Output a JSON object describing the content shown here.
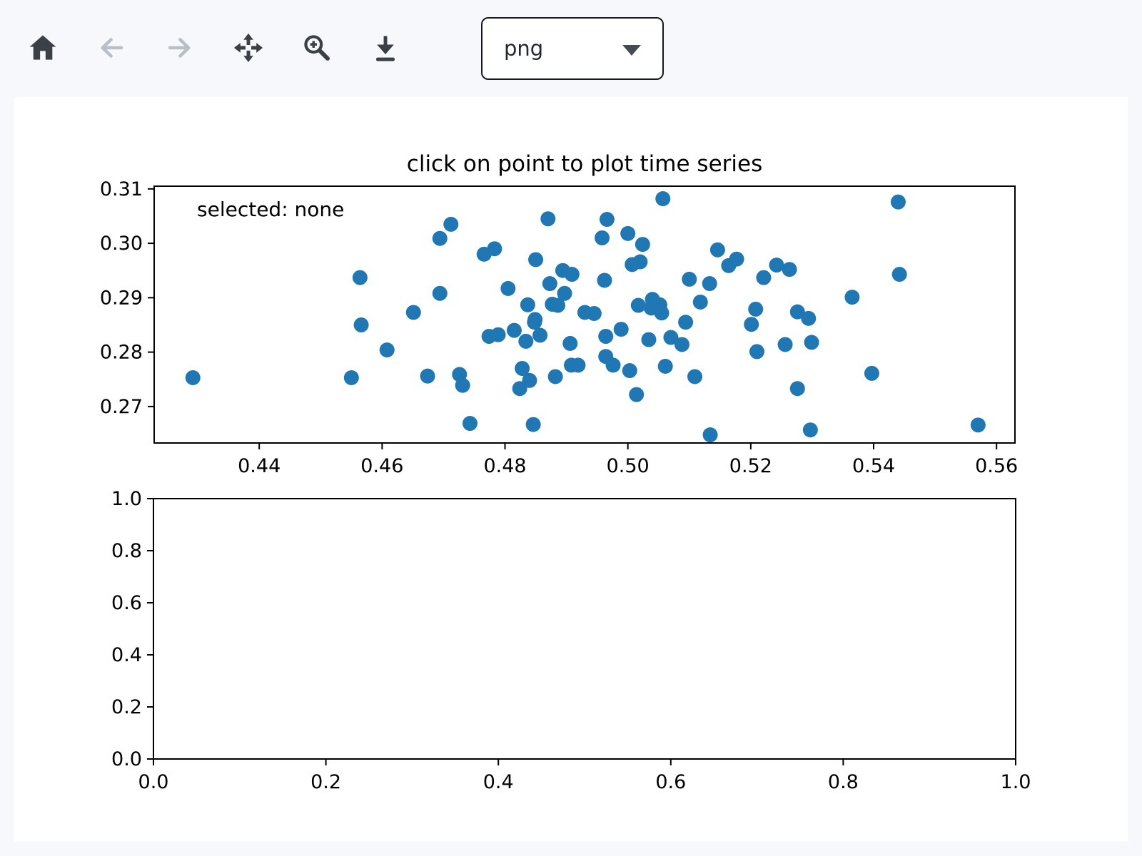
{
  "page": {
    "background": "#f6f8fc"
  },
  "toolbar": {
    "buttons": [
      {
        "label": "Home",
        "icon": "home-icon",
        "enabled": true
      },
      {
        "label": "Back",
        "icon": "arrow-left-icon",
        "enabled": false
      },
      {
        "label": "Forward",
        "icon": "arrow-right-icon",
        "enabled": false
      },
      {
        "label": "Pan",
        "icon": "move-icon",
        "enabled": true
      },
      {
        "label": "Zoom to rectangle",
        "icon": "zoom-in-icon",
        "enabled": true
      },
      {
        "label": "Download",
        "icon": "download-icon",
        "enabled": true
      }
    ],
    "format_select": {
      "value": "png",
      "icon": "caret-down-icon"
    }
  },
  "colors": {
    "marker": "#1f77b4",
    "axis": "#000000",
    "icon_enabled": "#3b4046",
    "icon_disabled": "#b9bfc9"
  },
  "chart_data": [
    {
      "type": "scatter",
      "name": "scatter-axes",
      "title": "click on point to plot time series",
      "annotation": "selected: none",
      "xlim": [
        0.4229,
        0.563
      ],
      "ylim": [
        0.2633,
        0.3105
      ],
      "xticks": [
        0.44,
        0.46,
        0.48,
        0.5,
        0.52,
        0.54,
        0.56
      ],
      "xtick_labels": [
        "0.44",
        "0.46",
        "0.48",
        "0.50",
        "0.52",
        "0.54",
        "0.56"
      ],
      "yticks": [
        0.27,
        0.28,
        0.29,
        0.3,
        0.31
      ],
      "ytick_labels": [
        "0.27",
        "0.28",
        "0.29",
        "0.30",
        "0.31"
      ],
      "grid": false,
      "legend": null,
      "marker": {
        "color": "#1f77b4",
        "radius_px": 10.5
      },
      "clickable": true,
      "points": [
        [
          0.4292,
          0.2753
        ],
        [
          0.455,
          0.2753
        ],
        [
          0.4564,
          0.2937
        ],
        [
          0.4566,
          0.285
        ],
        [
          0.4608,
          0.2804
        ],
        [
          0.4651,
          0.2873
        ],
        [
          0.4674,
          0.2756
        ],
        [
          0.4694,
          0.3009
        ],
        [
          0.4694,
          0.2908
        ],
        [
          0.4712,
          0.3035
        ],
        [
          0.4726,
          0.2759
        ],
        [
          0.4731,
          0.2739
        ],
        [
          0.4743,
          0.2669
        ],
        [
          0.4766,
          0.298
        ],
        [
          0.4774,
          0.2829
        ],
        [
          0.4783,
          0.299
        ],
        [
          0.4789,
          0.2832
        ],
        [
          0.4805,
          0.2917
        ],
        [
          0.4815,
          0.284
        ],
        [
          0.4824,
          0.2733
        ],
        [
          0.4828,
          0.277
        ],
        [
          0.4834,
          0.282
        ],
        [
          0.4837,
          0.2887
        ],
        [
          0.484,
          0.2748
        ],
        [
          0.4846,
          0.2667
        ],
        [
          0.4848,
          0.2855
        ],
        [
          0.4849,
          0.286
        ],
        [
          0.485,
          0.297
        ],
        [
          0.4857,
          0.2831
        ],
        [
          0.487,
          0.3045
        ],
        [
          0.4873,
          0.2926
        ],
        [
          0.4877,
          0.2888
        ],
        [
          0.4882,
          0.2755
        ],
        [
          0.4886,
          0.2886
        ],
        [
          0.4894,
          0.295
        ],
        [
          0.4897,
          0.2908
        ],
        [
          0.4906,
          0.2816
        ],
        [
          0.4908,
          0.2776
        ],
        [
          0.4909,
          0.2943
        ],
        [
          0.4919,
          0.2776
        ],
        [
          0.493,
          0.2873
        ],
        [
          0.4945,
          0.2871
        ],
        [
          0.4958,
          0.301
        ],
        [
          0.4962,
          0.2932
        ],
        [
          0.4964,
          0.2829
        ],
        [
          0.4964,
          0.2792
        ],
        [
          0.4966,
          0.3044
        ],
        [
          0.4976,
          0.2776
        ],
        [
          0.4989,
          0.2842
        ],
        [
          0.5,
          0.3018
        ],
        [
          0.5003,
          0.2766
        ],
        [
          0.5007,
          0.2961
        ],
        [
          0.5014,
          0.2722
        ],
        [
          0.5017,
          0.2886
        ],
        [
          0.502,
          0.2966
        ],
        [
          0.5024,
          0.2998
        ],
        [
          0.5034,
          0.2823
        ],
        [
          0.5038,
          0.2881
        ],
        [
          0.504,
          0.2897
        ],
        [
          0.5052,
          0.2887
        ],
        [
          0.5055,
          0.2872
        ],
        [
          0.5057,
          0.3082
        ],
        [
          0.5061,
          0.2774
        ],
        [
          0.507,
          0.2827
        ],
        [
          0.5088,
          0.2814
        ],
        [
          0.5094,
          0.2855
        ],
        [
          0.51,
          0.2934
        ],
        [
          0.5109,
          0.2755
        ],
        [
          0.5118,
          0.2892
        ],
        [
          0.5133,
          0.2926
        ],
        [
          0.5134,
          0.2648
        ],
        [
          0.5146,
          0.2988
        ],
        [
          0.5164,
          0.2959
        ],
        [
          0.5177,
          0.2971
        ],
        [
          0.5201,
          0.2851
        ],
        [
          0.5208,
          0.2879
        ],
        [
          0.521,
          0.2801
        ],
        [
          0.5221,
          0.2937
        ],
        [
          0.5242,
          0.296
        ],
        [
          0.5256,
          0.2814
        ],
        [
          0.5263,
          0.2952
        ],
        [
          0.5276,
          0.2874
        ],
        [
          0.5276,
          0.2733
        ],
        [
          0.5294,
          0.2862
        ],
        [
          0.5297,
          0.2657
        ],
        [
          0.5299,
          0.2818
        ],
        [
          0.5365,
          0.2901
        ],
        [
          0.5397,
          0.2761
        ],
        [
          0.544,
          0.3076
        ],
        [
          0.5442,
          0.2943
        ],
        [
          0.557,
          0.2666
        ]
      ]
    },
    {
      "type": "scatter",
      "name": "timeseries-axes",
      "title": "",
      "annotation": "",
      "xlim": [
        0.0,
        1.0
      ],
      "ylim": [
        0.0,
        1.0
      ],
      "xticks": [
        0.0,
        0.2,
        0.4,
        0.6,
        0.8,
        1.0
      ],
      "xtick_labels": [
        "0.0",
        "0.2",
        "0.4",
        "0.6",
        "0.8",
        "1.0"
      ],
      "yticks": [
        0.0,
        0.2,
        0.4,
        0.6,
        0.8,
        1.0
      ],
      "ytick_labels": [
        "0.0",
        "0.2",
        "0.4",
        "0.6",
        "0.8",
        "1.0"
      ],
      "grid": false,
      "legend": null,
      "marker": {
        "color": "#1f77b4",
        "radius_px": 10.5
      },
      "clickable": false,
      "points": []
    }
  ]
}
